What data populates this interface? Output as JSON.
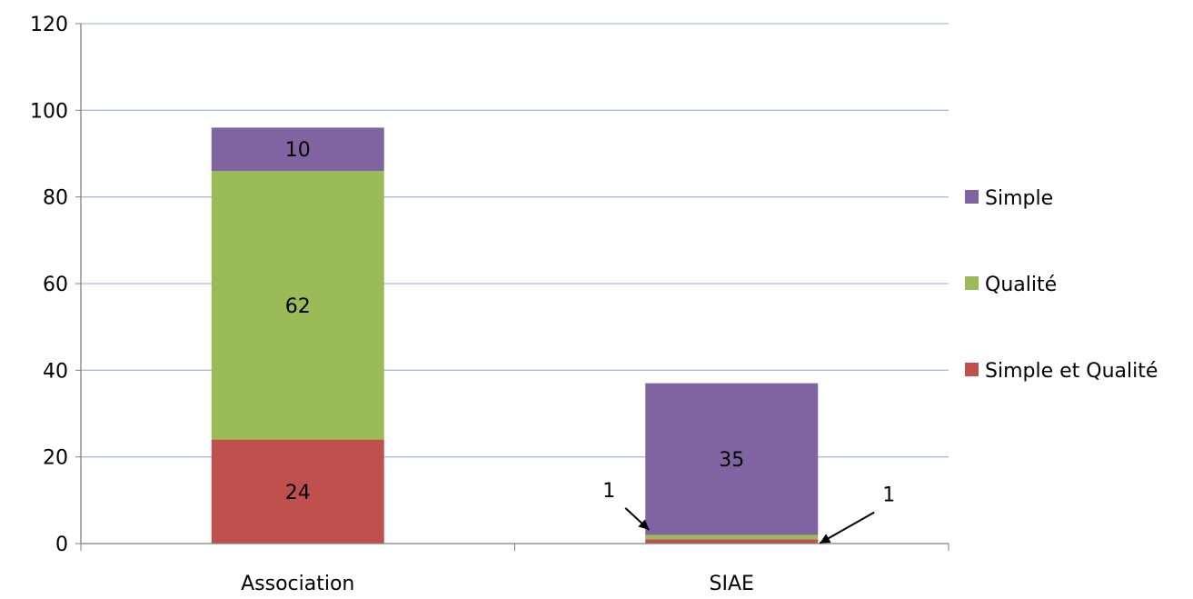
{
  "chart_data": {
    "type": "bar",
    "stacked": true,
    "categories": [
      "Association",
      "SIAE"
    ],
    "series": [
      {
        "name": "Simple et Qualité",
        "color": "#C0504D",
        "values": [
          24,
          1
        ],
        "labels": [
          "24",
          "1"
        ]
      },
      {
        "name": "Qualité",
        "color": "#9BBB59",
        "values": [
          62,
          1
        ],
        "labels": [
          "62",
          "1"
        ]
      },
      {
        "name": "Simple",
        "color": "#8064A2",
        "values": [
          10,
          35
        ],
        "labels": [
          "10",
          "35"
        ]
      }
    ],
    "ylim": [
      0,
      120
    ],
    "yticks": [
      "0",
      "20",
      "40",
      "60",
      "80",
      "100",
      "120"
    ],
    "grid": true,
    "gridColor": "#A6BDDB",
    "legend_position": "right",
    "legend_order": [
      "Simple",
      "Qualité",
      "Simple et Qualité"
    ],
    "title": "",
    "xlabel": "",
    "ylabel": ""
  }
}
